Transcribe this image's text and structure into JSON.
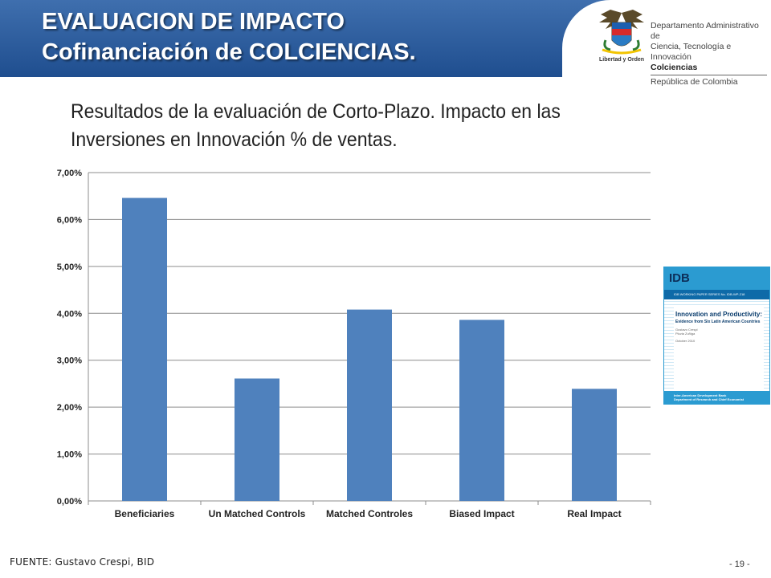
{
  "header": {
    "title_line1": "EVALUACION  DE IMPACTO",
    "title_line2": "Cofinanciación de COLCIENCIAS."
  },
  "logo": {
    "line1": "Departamento Administrativo de",
    "line2": "Ciencia, Tecnología e Innovación",
    "line3": "Colciencias",
    "line4": "República de Colombia",
    "crest_caption": "Libertad y Orden"
  },
  "subtitle": "Resultados de la evaluación de Corto-Plazo. Impacto en las Inversiones en Innovación % de ventas.",
  "idb_cover": {
    "logo": "IDB",
    "series_line": "IDB WORKING PAPER SERIES No. IDB-WP-218",
    "title": "Innovation and Productivity:",
    "subtitle": "Evidence from Six Latin American Countries",
    "authors": "Gustavo Crespi\nPluvia Zuñiga",
    "date": "October 2010",
    "publisher": "Inter-American Development Bank",
    "department": "Department of Research and Chief Economist"
  },
  "chart_data": {
    "type": "bar",
    "categories": [
      "Beneficiaries",
      "Un Matched Controls",
      "Matched Controles",
      "Biased Impact",
      "Real Impact"
    ],
    "values": [
      6.46,
      2.61,
      4.08,
      3.86,
      2.39
    ],
    "value_unit": "%",
    "ylim": [
      0,
      7
    ],
    "yticks": [
      "0,00%",
      "1,00%",
      "2,00%",
      "3,00%",
      "4,00%",
      "5,00%",
      "6,00%",
      "7,00%"
    ],
    "grid": true,
    "bar_color": "#4f81bd"
  },
  "footer": {
    "source": "FUENTE: Gustavo Crespi, BID",
    "page_number": "- 19 -"
  }
}
